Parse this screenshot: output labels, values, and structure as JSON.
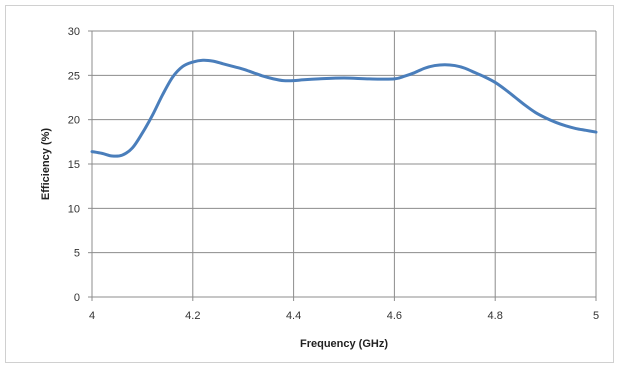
{
  "chart_data": {
    "type": "line",
    "title": "",
    "xlabel": "Frequency (GHz)",
    "ylabel": "Efficiency (%)",
    "xlim": [
      4,
      5
    ],
    "ylim": [
      0,
      30
    ],
    "x_ticks": [
      "4",
      "4.2",
      "4.4",
      "4.6",
      "4.8",
      "5"
    ],
    "y_ticks": [
      "0",
      "5",
      "10",
      "15",
      "20",
      "25",
      "30"
    ],
    "grid": true,
    "legend": "none",
    "series": [
      {
        "color": "#4a7ebb",
        "x": [
          4.0,
          4.02,
          4.04,
          4.06,
          4.08,
          4.1,
          4.12,
          4.14,
          4.16,
          4.18,
          4.2,
          4.22,
          4.24,
          4.26,
          4.28,
          4.3,
          4.32,
          4.34,
          4.36,
          4.38,
          4.4,
          4.42,
          4.45,
          4.5,
          4.55,
          4.6,
          4.62,
          4.64,
          4.66,
          4.68,
          4.7,
          4.72,
          4.74,
          4.76,
          4.78,
          4.8,
          4.82,
          4.84,
          4.86,
          4.88,
          4.9,
          4.92,
          4.94,
          4.96,
          4.98,
          5.0
        ],
        "y": [
          16.4,
          16.2,
          15.9,
          16.0,
          16.8,
          18.5,
          20.5,
          22.8,
          24.8,
          26.0,
          26.5,
          26.7,
          26.6,
          26.3,
          26.0,
          25.7,
          25.3,
          24.9,
          24.6,
          24.4,
          24.4,
          24.5,
          24.6,
          24.7,
          24.6,
          24.6,
          24.9,
          25.3,
          25.8,
          26.1,
          26.2,
          26.1,
          25.8,
          25.3,
          24.8,
          24.2,
          23.4,
          22.5,
          21.6,
          20.8,
          20.2,
          19.7,
          19.3,
          19.0,
          18.8,
          18.6
        ]
      }
    ]
  }
}
